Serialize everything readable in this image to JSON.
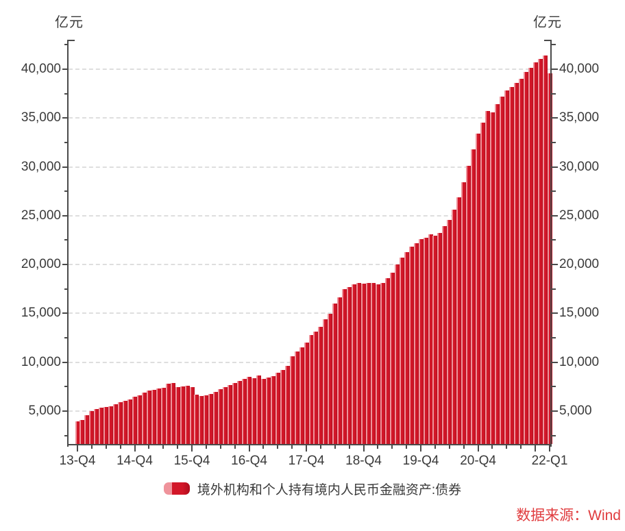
{
  "chart_data": {
    "type": "bar",
    "title": "",
    "unit_left": "亿元",
    "unit_right": "亿元",
    "series_name": "境外机构和个人持有境内人民币金融资产:债券",
    "x_start": "2013-12",
    "x_frequency": "monthly",
    "values": [
      3950,
      4100,
      4580,
      4990,
      5200,
      5340,
      5430,
      5520,
      5700,
      5900,
      6060,
      6220,
      6450,
      6600,
      6900,
      7080,
      7160,
      7290,
      7390,
      7810,
      7860,
      7460,
      7530,
      7580,
      7480,
      6650,
      6560,
      6630,
      6760,
      6960,
      7230,
      7450,
      7640,
      7870,
      8060,
      8280,
      8530,
      8340,
      8650,
      8300,
      8410,
      8570,
      8910,
      9240,
      9620,
      10610,
      11100,
      11510,
      11990,
      12780,
      13160,
      13630,
      14390,
      14960,
      16010,
      16620,
      17510,
      17720,
      17950,
      18100,
      18010,
      18080,
      18130,
      17960,
      18110,
      18600,
      19200,
      19980,
      20700,
      21300,
      21800,
      22200,
      22630,
      22740,
      23090,
      22960,
      23260,
      23900,
      24600,
      25600,
      26900,
      28400,
      30100,
      31800,
      33370,
      34540,
      35720,
      35600,
      36440,
      37170,
      37800,
      38200,
      38600,
      39000,
      39700,
      40140,
      40700,
      41020,
      41410,
      39590
    ],
    "x_tick_labels": [
      {
        "month_index": 0,
        "label": "13-Q4"
      },
      {
        "month_index": 12,
        "label": "14-Q4"
      },
      {
        "month_index": 24,
        "label": "15-Q4"
      },
      {
        "month_index": 36,
        "label": "16-Q4"
      },
      {
        "month_index": 48,
        "label": "17-Q4"
      },
      {
        "month_index": 60,
        "label": "18-Q4"
      },
      {
        "month_index": 72,
        "label": "19-Q4"
      },
      {
        "month_index": 84,
        "label": "20-Q4"
      },
      {
        "month_index": 96,
        "label": ""
      },
      {
        "month_index": 99,
        "label": "22-Q1"
      }
    ],
    "minor_x_tick_every_months": 3,
    "y_major_ticks": [
      5000,
      10000,
      15000,
      20000,
      25000,
      30000,
      35000,
      40000
    ],
    "y_minor_step": 2500,
    "grid": "dashed-horizontal",
    "legend_position": "bottom-center",
    "colors": {
      "bar_highlight": "#ef939b",
      "bar_main": "#d21628",
      "bar_dark": "#ae0c1c",
      "axis": "#4a4a4a",
      "grid": "#dedede",
      "text": "#3a3a3a",
      "accent_red": "#e03c3e"
    }
  },
  "legend": {
    "label": "境外机构和个人持有境内人民币金融资产:债券"
  },
  "source": {
    "text": "数据来源：Wind"
  }
}
